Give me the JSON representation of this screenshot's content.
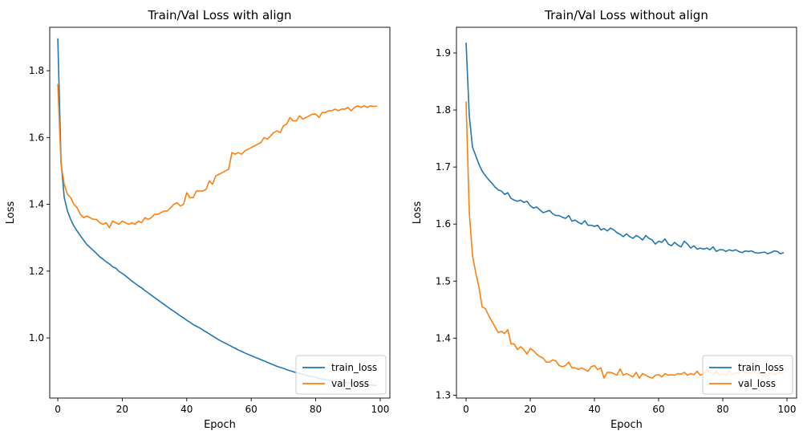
{
  "colors": {
    "train_loss": "#1f77b4",
    "val_loss": "#ff7f0e"
  },
  "chart_data": [
    {
      "type": "line",
      "title": "Train/Val Loss with align",
      "xlabel": "Epoch",
      "ylabel": "Loss",
      "xlim": [
        -2.5,
        103
      ],
      "ylim": [
        0.82,
        1.93
      ],
      "xticks": [
        0,
        20,
        40,
        60,
        80,
        100
      ],
      "yticks": [
        1.0,
        1.2,
        1.4,
        1.6,
        1.8
      ],
      "legend": "lower-right",
      "x": [
        0,
        1,
        2,
        3,
        4,
        5,
        6,
        7,
        8,
        9,
        10,
        11,
        12,
        13,
        14,
        15,
        16,
        17,
        18,
        19,
        20,
        21,
        22,
        23,
        24,
        25,
        26,
        27,
        28,
        29,
        30,
        31,
        32,
        33,
        34,
        35,
        36,
        37,
        38,
        39,
        40,
        41,
        42,
        43,
        44,
        45,
        46,
        47,
        48,
        49,
        50,
        51,
        52,
        53,
        54,
        55,
        56,
        57,
        58,
        59,
        60,
        61,
        62,
        63,
        64,
        65,
        66,
        67,
        68,
        69,
        70,
        71,
        72,
        73,
        74,
        75,
        76,
        77,
        78,
        79,
        80,
        81,
        82,
        83,
        84,
        85,
        86,
        87,
        88,
        89,
        90,
        91,
        92,
        93,
        94,
        95,
        96,
        97,
        98,
        99
      ],
      "series": [
        {
          "name": "train_loss",
          "values": [
            1.897,
            1.53,
            1.42,
            1.38,
            1.355,
            1.335,
            1.32,
            1.306,
            1.293,
            1.28,
            1.271,
            1.262,
            1.253,
            1.243,
            1.236,
            1.228,
            1.222,
            1.213,
            1.209,
            1.199,
            1.193,
            1.186,
            1.178,
            1.17,
            1.163,
            1.156,
            1.15,
            1.142,
            1.135,
            1.128,
            1.121,
            1.114,
            1.107,
            1.1,
            1.093,
            1.086,
            1.08,
            1.073,
            1.066,
            1.06,
            1.053,
            1.047,
            1.04,
            1.035,
            1.03,
            1.024,
            1.018,
            1.012,
            1.006,
            1.0,
            0.994,
            0.989,
            0.984,
            0.979,
            0.974,
            0.969,
            0.964,
            0.96,
            0.955,
            0.951,
            0.947,
            0.943,
            0.939,
            0.935,
            0.931,
            0.927,
            0.923,
            0.919,
            0.915,
            0.912,
            0.909,
            0.905,
            0.902,
            0.899,
            0.896,
            0.894,
            0.891,
            0.888,
            0.886,
            0.884,
            0.882,
            0.879,
            0.877,
            0.875,
            0.874,
            0.872,
            0.871,
            0.869,
            0.868,
            0.866,
            0.865,
            0.864,
            0.863,
            0.862,
            0.861,
            0.861,
            0.86,
            0.859,
            0.858,
            0.858
          ]
        },
        {
          "name": "val_loss",
          "values": [
            1.76,
            1.52,
            1.46,
            1.43,
            1.42,
            1.4,
            1.39,
            1.37,
            1.36,
            1.365,
            1.36,
            1.355,
            1.355,
            1.345,
            1.34,
            1.345,
            1.33,
            1.35,
            1.345,
            1.34,
            1.35,
            1.345,
            1.34,
            1.345,
            1.34,
            1.35,
            1.345,
            1.36,
            1.355,
            1.36,
            1.37,
            1.37,
            1.375,
            1.38,
            1.38,
            1.39,
            1.4,
            1.405,
            1.395,
            1.4,
            1.435,
            1.42,
            1.42,
            1.44,
            1.44,
            1.44,
            1.445,
            1.47,
            1.46,
            1.485,
            1.49,
            1.495,
            1.5,
            1.505,
            1.555,
            1.55,
            1.555,
            1.55,
            1.56,
            1.565,
            1.57,
            1.575,
            1.58,
            1.585,
            1.6,
            1.595,
            1.605,
            1.615,
            1.62,
            1.615,
            1.635,
            1.64,
            1.66,
            1.65,
            1.65,
            1.665,
            1.655,
            1.66,
            1.665,
            1.67,
            1.67,
            1.66,
            1.675,
            1.675,
            1.68,
            1.68,
            1.685,
            1.68,
            1.685,
            1.685,
            1.69,
            1.68,
            1.69,
            1.695,
            1.69,
            1.695,
            1.69,
            1.695,
            1.693,
            1.694
          ]
        }
      ]
    },
    {
      "type": "line",
      "title": "Train/Val Loss without align",
      "xlabel": "Epoch",
      "ylabel": "Loss",
      "xlim": [
        -3,
        103
      ],
      "ylim": [
        1.295,
        1.945
      ],
      "xticks": [
        0,
        20,
        40,
        60,
        80,
        100
      ],
      "yticks": [
        1.3,
        1.4,
        1.5,
        1.6,
        1.7,
        1.8,
        1.9
      ],
      "legend": "lower-right",
      "x": [
        0,
        1,
        2,
        3,
        4,
        5,
        6,
        7,
        8,
        9,
        10,
        11,
        12,
        13,
        14,
        15,
        16,
        17,
        18,
        19,
        20,
        21,
        22,
        23,
        24,
        25,
        26,
        27,
        28,
        29,
        30,
        31,
        32,
        33,
        34,
        35,
        36,
        37,
        38,
        39,
        40,
        41,
        42,
        43,
        44,
        45,
        46,
        47,
        48,
        49,
        50,
        51,
        52,
        53,
        54,
        55,
        56,
        57,
        58,
        59,
        60,
        61,
        62,
        63,
        64,
        65,
        66,
        67,
        68,
        69,
        70,
        71,
        72,
        73,
        74,
        75,
        76,
        77,
        78,
        79,
        80,
        81,
        82,
        83,
        84,
        85,
        86,
        87,
        88,
        89,
        90,
        91,
        92,
        93,
        94,
        95,
        96,
        97,
        98,
        99
      ],
      "series": [
        {
          "name": "train_loss",
          "values": [
            1.918,
            1.79,
            1.735,
            1.72,
            1.705,
            1.693,
            1.685,
            1.678,
            1.672,
            1.665,
            1.66,
            1.658,
            1.652,
            1.655,
            1.645,
            1.642,
            1.64,
            1.642,
            1.638,
            1.64,
            1.632,
            1.628,
            1.63,
            1.625,
            1.62,
            1.622,
            1.624,
            1.618,
            1.615,
            1.615,
            1.612,
            1.61,
            1.615,
            1.605,
            1.607,
            1.603,
            1.6,
            1.606,
            1.598,
            1.598,
            1.596,
            1.598,
            1.59,
            1.592,
            1.588,
            1.593,
            1.59,
            1.585,
            1.582,
            1.578,
            1.583,
            1.578,
            1.575,
            1.58,
            1.577,
            1.572,
            1.58,
            1.575,
            1.572,
            1.565,
            1.57,
            1.568,
            1.574,
            1.565,
            1.562,
            1.568,
            1.563,
            1.56,
            1.57,
            1.565,
            1.558,
            1.562,
            1.556,
            1.558,
            1.556,
            1.558,
            1.555,
            1.56,
            1.552,
            1.555,
            1.555,
            1.552,
            1.555,
            1.553,
            1.555,
            1.552,
            1.55,
            1.553,
            1.552,
            1.553,
            1.55,
            1.549,
            1.55,
            1.551,
            1.548,
            1.55,
            1.553,
            1.552,
            1.548,
            1.55
          ]
        },
        {
          "name": "val_loss",
          "values": [
            1.815,
            1.62,
            1.545,
            1.515,
            1.49,
            1.455,
            1.452,
            1.44,
            1.43,
            1.42,
            1.41,
            1.412,
            1.408,
            1.415,
            1.39,
            1.39,
            1.38,
            1.385,
            1.38,
            1.372,
            1.382,
            1.378,
            1.372,
            1.368,
            1.365,
            1.358,
            1.358,
            1.362,
            1.36,
            1.352,
            1.35,
            1.352,
            1.358,
            1.348,
            1.348,
            1.345,
            1.348,
            1.345,
            1.342,
            1.35,
            1.352,
            1.345,
            1.348,
            1.33,
            1.34,
            1.34,
            1.338,
            1.335,
            1.346,
            1.335,
            1.338,
            1.335,
            1.332,
            1.34,
            1.33,
            1.338,
            1.335,
            1.332,
            1.33,
            1.335,
            1.336,
            1.332,
            1.338,
            1.335,
            1.336,
            1.335,
            1.338,
            1.337,
            1.34,
            1.335,
            1.338,
            1.336,
            1.342,
            1.335,
            1.338,
            1.345,
            1.34,
            1.336,
            1.342,
            1.335,
            1.338,
            1.335,
            1.342,
            1.337,
            1.34,
            1.338,
            1.345,
            1.339,
            1.34,
            1.338,
            1.342,
            1.336,
            1.34,
            1.338,
            1.335,
            1.34,
            1.336,
            1.338,
            1.34,
            1.337
          ]
        }
      ]
    }
  ]
}
